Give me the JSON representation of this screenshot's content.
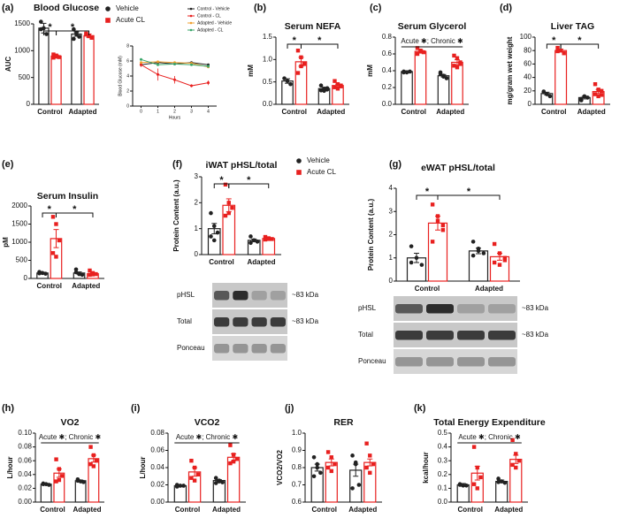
{
  "chart_data": [
    {
      "type": "bar",
      "label": "(a)",
      "title": "Blood Glucose",
      "ylabel": "AUC",
      "categories": [
        "Control",
        "Adapted"
      ],
      "ylim": [
        0,
        1500
      ],
      "yticks": [
        0,
        500,
        1000,
        1500
      ],
      "annotations": [
        "*",
        "*"
      ],
      "legend": "right",
      "series": [
        {
          "name": "Vehicle",
          "color": "#222222",
          "values": [
            1420,
            1310
          ],
          "errors": [
            90,
            40
          ],
          "points": [
            [
              1540,
              1420,
              1310,
              1400
            ],
            [
              1400,
              1330,
              1260,
              1220,
              1310
            ]
          ]
        },
        {
          "name": "Acute CL",
          "color": "#e8201f",
          "values": [
            900,
            1280
          ],
          "errors": [
            20,
            30
          ],
          "points": [
            [
              930,
              890,
              880,
              870,
              910
            ],
            [
              1320,
              1280,
              1250,
              1300,
              1270,
              1240
            ]
          ]
        }
      ]
    },
    {
      "type": "line",
      "ylabel": "Blood Glucose (mM)",
      "xlabel": "Hours",
      "x": [
        0,
        1,
        2,
        3,
        4
      ],
      "xlim": [
        -0.5,
        4.5
      ],
      "xticks": [
        0,
        1,
        2,
        3,
        4
      ],
      "ylim": [
        0,
        8
      ],
      "yticks": [
        0,
        2,
        4,
        6,
        8
      ],
      "legend": "top right",
      "series": [
        {
          "name": "Control - Vehicle",
          "color": "#222222",
          "values": [
            5.5,
            5.8,
            5.6,
            5.8,
            5.5
          ]
        },
        {
          "name": "Control - CL",
          "color": "#e8201f",
          "values": [
            5.5,
            4.2,
            3.5,
            2.7,
            3.1
          ],
          "errors": [
            0.3,
            0.8,
            0.5,
            0.2,
            0.3
          ]
        },
        {
          "name": "Adapted - Vehicle",
          "color": "#f0a030",
          "values": [
            5.8,
            5.9,
            5.8,
            5.7,
            5.2
          ]
        },
        {
          "name": "Adapted - CL",
          "color": "#3aa66a",
          "values": [
            6.2,
            5.5,
            5.6,
            5.5,
            5.3
          ]
        }
      ]
    },
    {
      "type": "bar",
      "label": "(b)",
      "title": "Serum NEFA",
      "ylabel": "mM",
      "categories": [
        "Control",
        "Adapted"
      ],
      "ylim": [
        0,
        1.5
      ],
      "yticks": [
        {
          "value": 0,
          "label": "0.0"
        },
        0.5,
        {
          "value": 1,
          "label": "1.0"
        },
        1.5
      ],
      "annotations": [
        "*",
        "*"
      ],
      "series": [
        {
          "color": "#222222",
          "values": [
            0.52,
            0.35
          ],
          "errors": [
            0.05,
            0.03
          ],
          "points": [
            [
              0.58,
              0.52,
              0.45
            ],
            [
              0.42,
              0.35,
              0.33,
              0.31,
              0.3,
              0.36
            ]
          ]
        },
        {
          "color": "#e8201f",
          "values": [
            0.95,
            0.42
          ],
          "errors": [
            0.1,
            0.03
          ],
          "points": [
            [
              1.2,
              1.05,
              0.9,
              0.7,
              0.85
            ],
            [
              0.52,
              0.45,
              0.4,
              0.38,
              0.35,
              0.42
            ]
          ]
        }
      ]
    },
    {
      "type": "bar",
      "label": "(c)",
      "title": "Serum Glycerol",
      "ylabel": "mM",
      "categories": [
        "Control",
        "Adapted"
      ],
      "ylim": [
        0,
        0.8
      ],
      "yticks": [
        {
          "value": 0,
          "label": "0.0"
        },
        0.2,
        0.4,
        0.6,
        0.8
      ],
      "annotation": "Acute ✱; Chronic ✱",
      "series": [
        {
          "color": "#222222",
          "values": [
            0.39,
            0.34
          ],
          "errors": [
            0.01,
            0.015
          ],
          "points": [
            [
              0.39,
              0.38,
              0.39,
              0.38
            ],
            [
              0.38,
              0.33,
              0.31,
              0.36,
              0.34
            ]
          ]
        },
        {
          "color": "#e8201f",
          "values": [
            0.63,
            0.5
          ],
          "errors": [
            0.02,
            0.03
          ],
          "points": [
            [
              0.67,
              0.64,
              0.62,
              0.6,
              0.63
            ],
            [
              0.58,
              0.55,
              0.5,
              0.46,
              0.44,
              0.48
            ]
          ]
        }
      ]
    },
    {
      "type": "bar",
      "label": "(d)",
      "title": "Liver TAG",
      "ylabel": "mg/gram wet weight",
      "categories": [
        "Control",
        "Adapted"
      ],
      "ylim": [
        0,
        100
      ],
      "yticks": [
        0,
        20,
        40,
        60,
        80,
        100
      ],
      "annotations": [
        "*",
        "*"
      ],
      "series": [
        {
          "color": "#222222",
          "values": [
            16,
            10
          ],
          "errors": [
            2,
            2
          ],
          "points": [
            [
              18,
              15,
              12,
              19
            ],
            [
              6,
              12,
              10,
              8
            ]
          ]
        },
        {
          "color": "#e8201f",
          "values": [
            80,
            19
          ],
          "errors": [
            2,
            3
          ],
          "points": [
            [
              84,
              80,
              76,
              79
            ],
            [
              30,
              22,
              20,
              15,
              12,
              14
            ]
          ]
        }
      ]
    },
    {
      "type": "bar",
      "label": "(e)",
      "title": "Serum Insulin",
      "ylabel": "pM",
      "categories": [
        "Control",
        "Adapted"
      ],
      "ylim": [
        0,
        2000
      ],
      "yticks": [
        0,
        500,
        1000,
        1500,
        2000
      ],
      "annotations": [
        "*",
        "*"
      ],
      "series": [
        {
          "color": "#222222",
          "values": [
            150,
            150
          ],
          "errors": [
            20,
            30
          ],
          "points": [
            [
              180,
              150,
              130,
              140
            ],
            [
              250,
              120,
              100,
              170
            ]
          ]
        },
        {
          "color": "#e8201f",
          "values": [
            1100,
            130
          ],
          "errors": [
            250,
            30
          ],
          "points": [
            [
              1700,
              1500,
              1050,
              700,
              600
            ],
            [
              220,
              150,
              120,
              100,
              110
            ]
          ]
        }
      ]
    },
    {
      "type": "bar",
      "label": "(f)",
      "title": "iWAT pHSL/total",
      "ylabel": "Protein Content (a.u.)",
      "categories": [
        "Control",
        "Adapted"
      ],
      "ylim": [
        0,
        3
      ],
      "yticks": [
        0,
        1,
        2,
        3
      ],
      "annotations": [
        "*",
        "*"
      ],
      "legend": "right",
      "blot": {
        "rows": [
          "pHSL",
          "Total",
          "Ponceau"
        ],
        "size": "~83 kDa"
      },
      "series": [
        {
          "name": "Vehicle",
          "color": "#222222",
          "values": [
            1.0,
            0.55
          ],
          "errors": [
            0.2,
            0.05
          ],
          "points": [
            [
              1.6,
              1.1,
              0.85,
              0.7,
              0.55
            ],
            [
              0.7,
              0.55,
              0.5,
              0.45,
              0.55
            ]
          ]
        },
        {
          "name": "Acute CL",
          "color": "#e8201f",
          "values": [
            1.9,
            0.62
          ],
          "errors": [
            0.25,
            0.02
          ],
          "points": [
            [
              2.7,
              2.0,
              1.8,
              1.5,
              1.6
            ],
            [
              0.68,
              0.63,
              0.6,
              0.58,
              0.6
            ]
          ]
        }
      ]
    },
    {
      "type": "bar",
      "label": "(g)",
      "title": "eWAT pHSL/total",
      "ylabel": "Protein Content (a.u.)",
      "categories": [
        "Control",
        "Adapted"
      ],
      "ylim": [
        0,
        4
      ],
      "yticks": [
        0,
        1,
        2,
        3,
        4
      ],
      "annotations": [
        "*",
        "*"
      ],
      "blot": {
        "rows": [
          "pHSL",
          "Total",
          "Ponceau"
        ],
        "size": "~83 kDa"
      },
      "series": [
        {
          "color": "#222222",
          "values": [
            1.0,
            1.3
          ],
          "errors": [
            0.2,
            0.12
          ],
          "points": [
            [
              1.5,
              1.0,
              0.7,
              0.8
            ],
            [
              1.7,
              1.4,
              1.2,
              1.1,
              1.3
            ]
          ]
        },
        {
          "color": "#e8201f",
          "values": [
            2.5,
            1.05
          ],
          "errors": [
            0.3,
            0.15
          ],
          "points": [
            [
              3.3,
              2.6,
              2.2,
              1.7,
              2.8,
              2.4
            ],
            [
              1.6,
              1.2,
              1.0,
              0.8,
              0.7,
              0.9
            ]
          ]
        }
      ]
    },
    {
      "type": "bar",
      "label": "(h)",
      "title": "VO2",
      "ylabel": "L/hour",
      "categories": [
        "Control",
        "Adapted"
      ],
      "ylim": [
        0,
        0.1
      ],
      "yticks": [
        {
          "value": 0,
          "label": "0.00"
        },
        {
          "value": 0.02,
          "label": "0.02"
        },
        {
          "value": 0.04,
          "label": "0.04"
        },
        {
          "value": 0.06,
          "label": "0.06"
        },
        {
          "value": 0.08,
          "label": "0.08"
        },
        {
          "value": 0.1,
          "label": "0.10"
        }
      ],
      "annotation": "Acute ✱; Chronic ✱",
      "series": [
        {
          "color": "#222222",
          "values": [
            0.026,
            0.031
          ],
          "errors": [
            0.001,
            0.001
          ],
          "points": [
            [
              0.027,
              0.026,
              0.025,
              0.026
            ],
            [
              0.033,
              0.03,
              0.029,
              0.031
            ]
          ]
        },
        {
          "color": "#e8201f",
          "values": [
            0.042,
            0.063
          ],
          "errors": [
            0.006,
            0.005
          ],
          "points": [
            [
              0.062,
              0.048,
              0.038,
              0.03,
              0.032
            ],
            [
              0.08,
              0.068,
              0.06,
              0.055,
              0.052
            ]
          ]
        }
      ]
    },
    {
      "type": "bar",
      "label": "(i)",
      "title": "VCO2",
      "ylabel": "L/hour",
      "categories": [
        "Control",
        "Adapted"
      ],
      "ylim": [
        0,
        0.08
      ],
      "yticks": [
        {
          "value": 0,
          "label": "0.00"
        },
        {
          "value": 0.02,
          "label": "0.02"
        },
        {
          "value": 0.04,
          "label": "0.04"
        },
        {
          "value": 0.06,
          "label": "0.06"
        },
        {
          "value": 0.08,
          "label": "0.08"
        }
      ],
      "annotation": "Acute ✱; Chronic ✱",
      "series": [
        {
          "color": "#222222",
          "values": [
            0.019,
            0.025
          ],
          "errors": [
            0.001,
            0.001
          ],
          "points": [
            [
              0.02,
              0.019,
              0.019,
              0.018
            ],
            [
              0.028,
              0.025,
              0.023,
              0.022,
              0.024
            ]
          ]
        },
        {
          "color": "#e8201f",
          "values": [
            0.035,
            0.052
          ],
          "errors": [
            0.005,
            0.004
          ],
          "points": [
            [
              0.048,
              0.04,
              0.032,
              0.028,
              0.025
            ],
            [
              0.066,
              0.055,
              0.05,
              0.045,
              0.047
            ]
          ]
        }
      ]
    },
    {
      "type": "bar",
      "label": "(j)",
      "title": "RER",
      "ylabel": "VCO2/VO2",
      "categories": [
        "Control",
        "Adapted"
      ],
      "ylim": [
        0.6,
        1.0
      ],
      "yticks": [
        0.6,
        0.7,
        0.8,
        0.9,
        {
          "value": 1,
          "label": "1.0"
        }
      ],
      "series": [
        {
          "color": "#222222",
          "values": [
            0.8,
            0.785
          ],
          "errors": [
            0.02,
            0.035
          ],
          "points": [
            [
              0.86,
              0.82,
              0.77,
              0.75,
              0.8
            ],
            [
              0.87,
              0.83,
              0.7,
              0.68,
              0.82
            ]
          ]
        },
        {
          "color": "#e8201f",
          "values": [
            0.83,
            0.83
          ],
          "errors": [
            0.02,
            0.02
          ],
          "points": [
            [
              0.89,
              0.86,
              0.82,
              0.8,
              0.78
            ],
            [
              0.94,
              0.87,
              0.82,
              0.8,
              0.77
            ]
          ]
        }
      ]
    },
    {
      "type": "bar",
      "label": "(k)",
      "title": "Total Energy Expenditure",
      "ylabel": "kcal/hour",
      "categories": [
        "Control",
        "Adapted"
      ],
      "ylim": [
        0,
        0.5
      ],
      "yticks": [
        {
          "value": 0,
          "label": "0.0"
        },
        0.1,
        0.2,
        0.3,
        0.4,
        0.5
      ],
      "annotation": "Acute ✱; Chronic ✱",
      "series": [
        {
          "color": "#222222",
          "values": [
            0.125,
            0.15
          ],
          "errors": [
            0.01,
            0.01
          ],
          "points": [
            [
              0.13,
              0.12,
              0.12,
              0.125
            ],
            [
              0.17,
              0.15,
              0.14,
              0.145
            ]
          ]
        },
        {
          "color": "#e8201f",
          "values": [
            0.21,
            0.31
          ],
          "errors": [
            0.05,
            0.03
          ],
          "points": [
            [
              0.4,
              0.25,
              0.18,
              0.13,
              0.1
            ],
            [
              0.45,
              0.35,
              0.3,
              0.27,
              0.25
            ]
          ]
        }
      ]
    }
  ]
}
